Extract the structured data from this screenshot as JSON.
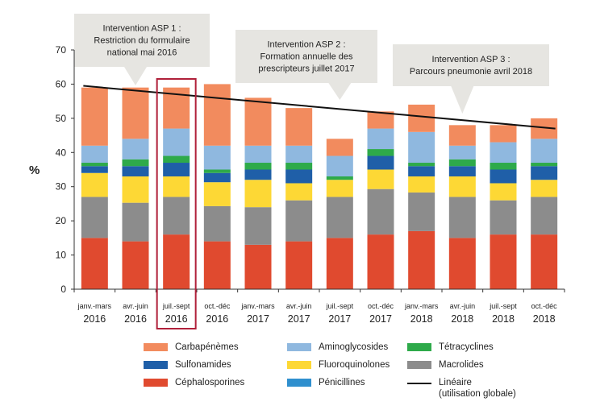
{
  "chart_data": {
    "type": "bar",
    "stacked": true,
    "ylabel": "%",
    "ylim": [
      0,
      70
    ],
    "yticks": [
      0,
      10,
      20,
      30,
      40,
      50,
      60,
      70
    ],
    "grid": false,
    "categories": [
      {
        "period": "janv.-mars",
        "year": "2016"
      },
      {
        "period": "avr.-juin",
        "year": "2016"
      },
      {
        "period": "juil.-sept",
        "year": "2016"
      },
      {
        "period": "oct.-déc",
        "year": "2016"
      },
      {
        "period": "janv.-mars",
        "year": "2017"
      },
      {
        "period": "avr.-juin",
        "year": "2017"
      },
      {
        "period": "juil.-sept",
        "year": "2017"
      },
      {
        "period": "oct.-déc",
        "year": "2017"
      },
      {
        "period": "janv.-mars",
        "year": "2018"
      },
      {
        "period": "avr.-juin",
        "year": "2018"
      },
      {
        "period": "juil.-sept",
        "year": "2018"
      },
      {
        "period": "oct.-déc",
        "year": "2018"
      }
    ],
    "highlighted_category_index": 2,
    "series": [
      {
        "name": "Céphalosporines",
        "color": "#e04a2f",
        "values": [
          15,
          14,
          16,
          14,
          13,
          14,
          15,
          16,
          17,
          15,
          16,
          16
        ]
      },
      {
        "name": "Macrolides",
        "color": "#8c8c8c",
        "values": [
          12,
          11.3,
          11,
          10.3,
          11,
          12,
          12,
          13.3,
          11.3,
          12,
          10,
          11
        ]
      },
      {
        "name": "Fluoroquinolones",
        "color": "#fdd835",
        "values": [
          7,
          7.7,
          6,
          7,
          8,
          5,
          5,
          5.7,
          4.7,
          6,
          5,
          5
        ]
      },
      {
        "name": "Pénicillines",
        "color": "#2f8fce",
        "values": [
          0,
          0,
          0,
          0,
          0,
          0,
          0,
          0,
          0,
          0,
          0,
          0
        ]
      },
      {
        "name": "Sulfonamides",
        "color": "#1f5fa8",
        "values": [
          2,
          3,
          4,
          2.7,
          3,
          4,
          0,
          4,
          3,
          3,
          4,
          4
        ]
      },
      {
        "name": "Tétracyclines",
        "color": "#2eaa4a",
        "values": [
          1,
          2,
          2,
          1,
          2,
          2,
          1,
          2,
          1,
          2,
          2,
          1
        ]
      },
      {
        "name": "Aminoglycosides",
        "color": "#8fb8df",
        "values": [
          5,
          6,
          8,
          7,
          5,
          5,
          6,
          6,
          9,
          4,
          6,
          7
        ]
      },
      {
        "name": "Carbapénèmes",
        "color": "#f28b5e",
        "values": [
          17,
          15,
          12,
          18,
          14,
          11,
          5,
          5,
          8,
          6,
          5,
          6
        ]
      }
    ],
    "trendline": {
      "name": "Linéaire",
      "subtitle": "(utilisation globale)",
      "color": "#111111",
      "start": 59.5,
      "end": 47
    },
    "annotations": [
      {
        "lines": [
          "Intervention ASP 1 :",
          "Restriction du formulaire",
          "national mai 2016"
        ],
        "target_category_index": 1
      },
      {
        "lines": [
          "Intervention ASP 2 :",
          "Formation annuelle des",
          "prescripteurs juillet 2017"
        ],
        "target_category_index": 6
      },
      {
        "lines": [
          "Intervention ASP 3 :",
          "Parcours pneumonie avril 2018"
        ],
        "target_category_index": 9
      }
    ],
    "legend": {
      "placement": "bottom",
      "items": [
        {
          "label": "Carbapénèmes",
          "color": "#f28b5e",
          "kind": "box"
        },
        {
          "label": "Aminoglycosides",
          "color": "#8fb8df",
          "kind": "box"
        },
        {
          "label": "Tétracyclines",
          "color": "#2eaa4a",
          "kind": "box"
        },
        {
          "label": "Sulfonamides",
          "color": "#1f5fa8",
          "kind": "box"
        },
        {
          "label": "Fluoroquinolones",
          "color": "#fdd835",
          "kind": "box"
        },
        {
          "label": "Macrolides",
          "color": "#8c8c8c",
          "kind": "box"
        },
        {
          "label": "Céphalosporines",
          "color": "#e04a2f",
          "kind": "box"
        },
        {
          "label": "Pénicillines",
          "color": "#2f8fce",
          "kind": "box"
        },
        {
          "label": "Linéaire",
          "sublabel": "(utilisation globale)",
          "color": "#111111",
          "kind": "line"
        }
      ]
    },
    "colors": {
      "callout_fill": "#e6e5e1",
      "highlight_box": "#b0203a",
      "axis": "#333333"
    }
  }
}
